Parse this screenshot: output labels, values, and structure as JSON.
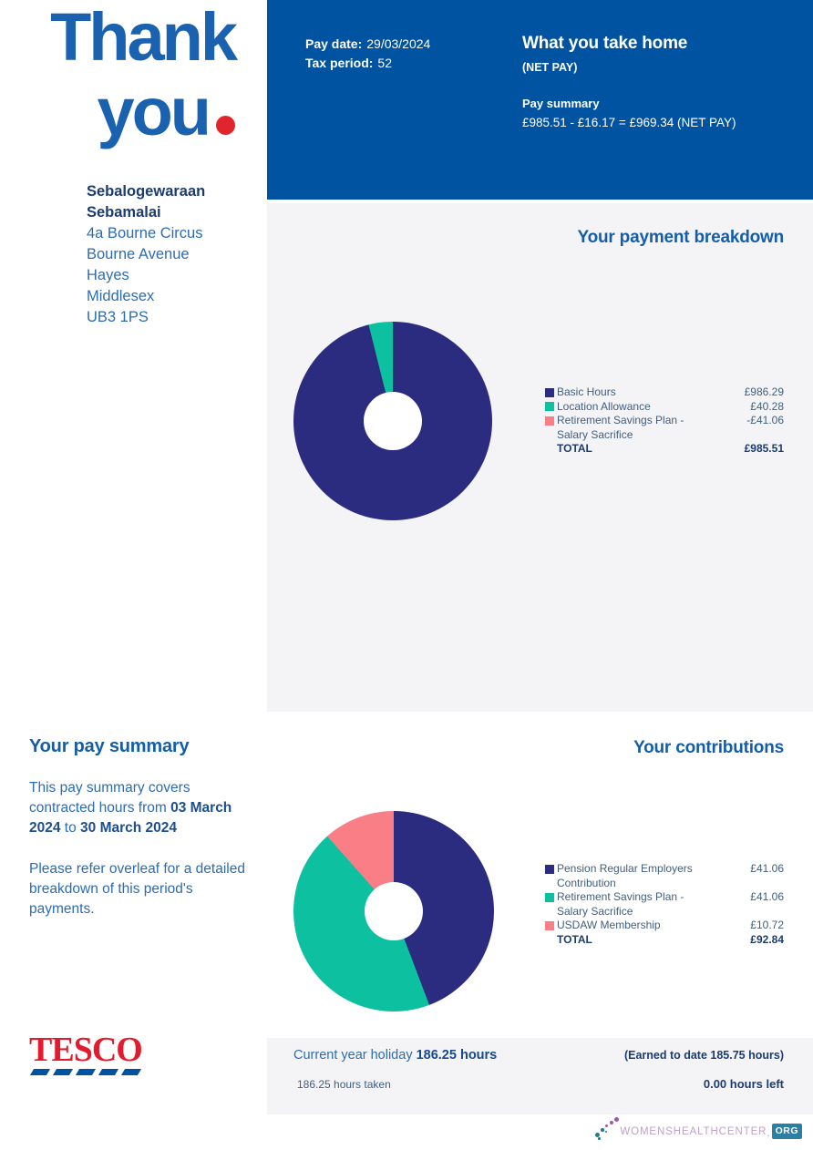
{
  "header": {
    "thank_you_line1": "Thank",
    "thank_you_line2": "you"
  },
  "recipient": {
    "name_line1": "Sebalogewaraan",
    "name_line2": "Sebamalai",
    "address_lines": [
      "4a Bourne Circus",
      "Bourne Avenue",
      "Hayes",
      "Middlesex",
      "UB3 1PS"
    ]
  },
  "banner": {
    "pay_date_label": "Pay date:",
    "pay_date_value": "29/03/2024",
    "tax_period_label": "Tax period:",
    "tax_period_value": "52",
    "take_home_title": "What you take home",
    "take_home_sub": "(NET PAY)",
    "pay_summary_label": "Pay summary",
    "pay_summary_equation": "£985.51 - £16.17 = £969.34 (NET PAY)"
  },
  "chart_data": [
    {
      "type": "pie",
      "donut": true,
      "title": "Your payment breakdown",
      "legend_position": "right",
      "items": [
        {
          "label": "Basic Hours",
          "label_line2": "",
          "value": 986.29,
          "display": "£986.29",
          "color": "#2b2b80"
        },
        {
          "label": "Location Allowance",
          "label_line2": "",
          "value": 40.28,
          "display": "£40.28",
          "color": "#0cc0a0"
        },
        {
          "label": "Retirement Savings Plan -",
          "label_line2": "Salary Sacrifice",
          "value": -41.06,
          "display": "-£41.06",
          "color": "#fa7e85"
        }
      ],
      "total_label": "TOTAL",
      "total_value": 985.51,
      "total_display": "£985.51"
    },
    {
      "type": "pie",
      "donut": true,
      "title": "Your contributions",
      "legend_position": "right",
      "items": [
        {
          "label": "Pension Regular Employers",
          "label_line2": "Contribution",
          "value": 41.06,
          "display": "£41.06",
          "color": "#2b2b80"
        },
        {
          "label": "Retirement Savings Plan -",
          "label_line2": "Salary Sacrifice",
          "value": 41.06,
          "display": "£41.06",
          "color": "#0cc0a0"
        },
        {
          "label": "USDAW Membership",
          "label_line2": "",
          "value": 10.72,
          "display": "£10.72",
          "color": "#fa7e85"
        }
      ],
      "total_label": "TOTAL",
      "total_value": 92.84,
      "total_display": "£92.84"
    }
  ],
  "pay_summary": {
    "title": "Your pay summary",
    "p1_a": "This pay summary covers contracted hours from ",
    "p1_b": "03 March 2024",
    "p1_c": " to ",
    "p1_d": "30 March 2024",
    "p2": "Please refer overleaf for a detailed breakdown of this period's payments."
  },
  "holiday": {
    "current_label": "Current year holiday",
    "current_value": "186.25 hours",
    "earned": "(Earned to date 185.75 hours)",
    "taken": "186.25 hours taken",
    "left": "0.00 hours left"
  },
  "footer": {
    "tesco_logo": "TESCO",
    "watermark_name": "WOMENSHEALTHCENTER",
    "watermark_period": ".",
    "watermark_org": "ORG"
  },
  "colors": {
    "banner_bg": "#0053a1",
    "panel_bg": "#f4f4f6",
    "heading_blue": "#145ea9",
    "body_blue": "#2d6cb2",
    "navy_text": "#1c3c6e",
    "donut_navy": "#2b2b80",
    "donut_teal": "#0cc0a0",
    "donut_pink": "#fa7e85",
    "tesco_red": "#e21c2e",
    "accent_red_dot": "#e0262c"
  }
}
